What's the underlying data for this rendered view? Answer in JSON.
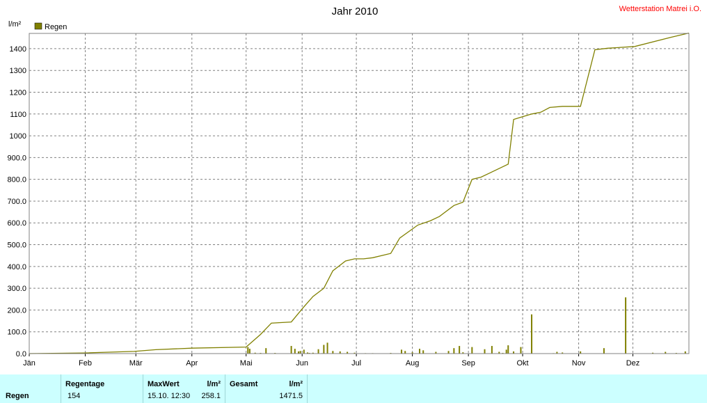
{
  "chart_data": {
    "type": "line+bar",
    "title": "Jahr 2010",
    "station": "Wetterstation Matrei i.O.",
    "ylabel": "l/m²",
    "ylim": [
      0,
      1470
    ],
    "yticks": [
      "0.0",
      "100.0",
      "200.0",
      "300.0",
      "400.0",
      "500.0",
      "600.0",
      "700.0",
      "800.0",
      "900.0",
      "1000",
      "1100",
      "1200",
      "1300",
      "1400"
    ],
    "ytick_values": [
      0,
      100,
      200,
      300,
      400,
      500,
      600,
      700,
      800,
      900,
      1000,
      1100,
      1200,
      1300,
      1400
    ],
    "months": [
      "Jän",
      "Feb",
      "Mär",
      "Apr",
      "Mai",
      "Jun",
      "Jul",
      "Aug",
      "Sep",
      "Okt",
      "Nov",
      "Dez"
    ],
    "legend": "Regen",
    "color": "#808000",
    "grid": true,
    "cumulative": {
      "name": "Regen",
      "x_day": [
        0,
        30,
        58,
        70,
        90,
        120,
        128,
        134,
        145,
        152,
        157,
        163,
        168,
        175,
        180,
        185,
        190,
        200,
        205,
        215,
        222,
        227,
        235,
        240,
        245,
        250,
        255,
        265,
        268,
        270,
        278,
        283,
        288,
        295,
        305,
        313,
        320,
        335,
        355,
        365
      ],
      "y": [
        0,
        3,
        10,
        18,
        25,
        30,
        88,
        140,
        145,
        215,
        262,
        300,
        380,
        425,
        435,
        435,
        440,
        460,
        530,
        590,
        610,
        630,
        680,
        695,
        800,
        810,
        830,
        870,
        1075,
        1080,
        1100,
        1108,
        1130,
        1135,
        1135,
        1395,
        1402,
        1410,
        1452,
        1471.5
      ]
    },
    "daily": {
      "name": "Regen",
      "day": [
        105,
        121,
        122,
        125,
        128,
        131,
        136,
        145,
        147,
        149,
        150,
        152,
        154,
        155,
        157,
        160,
        162,
        163,
        165,
        168,
        172,
        176,
        180,
        186,
        190,
        200,
        206,
        208,
        212,
        216,
        218,
        225,
        232,
        235,
        238,
        240,
        245,
        252,
        256,
        260,
        262,
        264,
        265,
        268,
        272,
        278,
        290,
        292,
        295,
        305,
        318,
        330,
        345,
        352,
        358,
        363
      ],
      "value": [
        1,
        30,
        22,
        4,
        3,
        25,
        3,
        35,
        22,
        10,
        12,
        18,
        5,
        3,
        4,
        20,
        2,
        40,
        50,
        12,
        10,
        8,
        4,
        2,
        2,
        3,
        18,
        12,
        6,
        22,
        15,
        8,
        12,
        25,
        35,
        6,
        30,
        20,
        35,
        8,
        3,
        18,
        38,
        10,
        30,
        180,
        2,
        8,
        5,
        10,
        25,
        258.1,
        4,
        8,
        3,
        10
      ]
    }
  },
  "footer": {
    "row_label": "Regen",
    "regentage_header": "Regentage",
    "regentage_value": "154",
    "maxwert_header": "MaxWert",
    "maxwert_unit": "l/m²",
    "maxwert_date": "15.10.  12:30",
    "maxwert_value": "258.1",
    "gesamt_header": "Gesamt",
    "gesamt_unit": "l/m²",
    "gesamt_value": "1471.5"
  }
}
